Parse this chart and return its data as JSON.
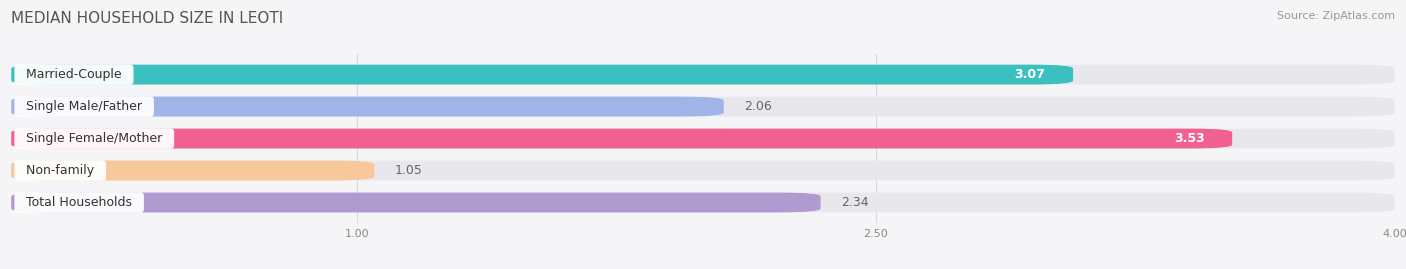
{
  "title": "MEDIAN HOUSEHOLD SIZE IN LEOTI",
  "source": "Source: ZipAtlas.com",
  "categories": [
    "Married-Couple",
    "Single Male/Father",
    "Single Female/Mother",
    "Non-family",
    "Total Households"
  ],
  "values": [
    3.07,
    2.06,
    3.53,
    1.05,
    2.34
  ],
  "colors": [
    "#3bbfbf",
    "#a0b4e8",
    "#f06090",
    "#f8c89a",
    "#b09ad0"
  ],
  "value_inside": [
    true,
    false,
    true,
    false,
    false
  ],
  "value_colors_inside": [
    "#ffffff",
    "#555555",
    "#ffffff",
    "#555555",
    "#555555"
  ],
  "bar_bg_color": "#e8e8ec",
  "xlim_min": 0.0,
  "xlim_max": 4.0,
  "xticks": [
    1.0,
    2.5,
    4.0
  ],
  "title_fontsize": 11,
  "source_fontsize": 8,
  "label_fontsize": 9,
  "value_fontsize": 9,
  "bar_height": 0.62,
  "background_color": "#f5f5f8",
  "grid_color": "#d8d8de"
}
